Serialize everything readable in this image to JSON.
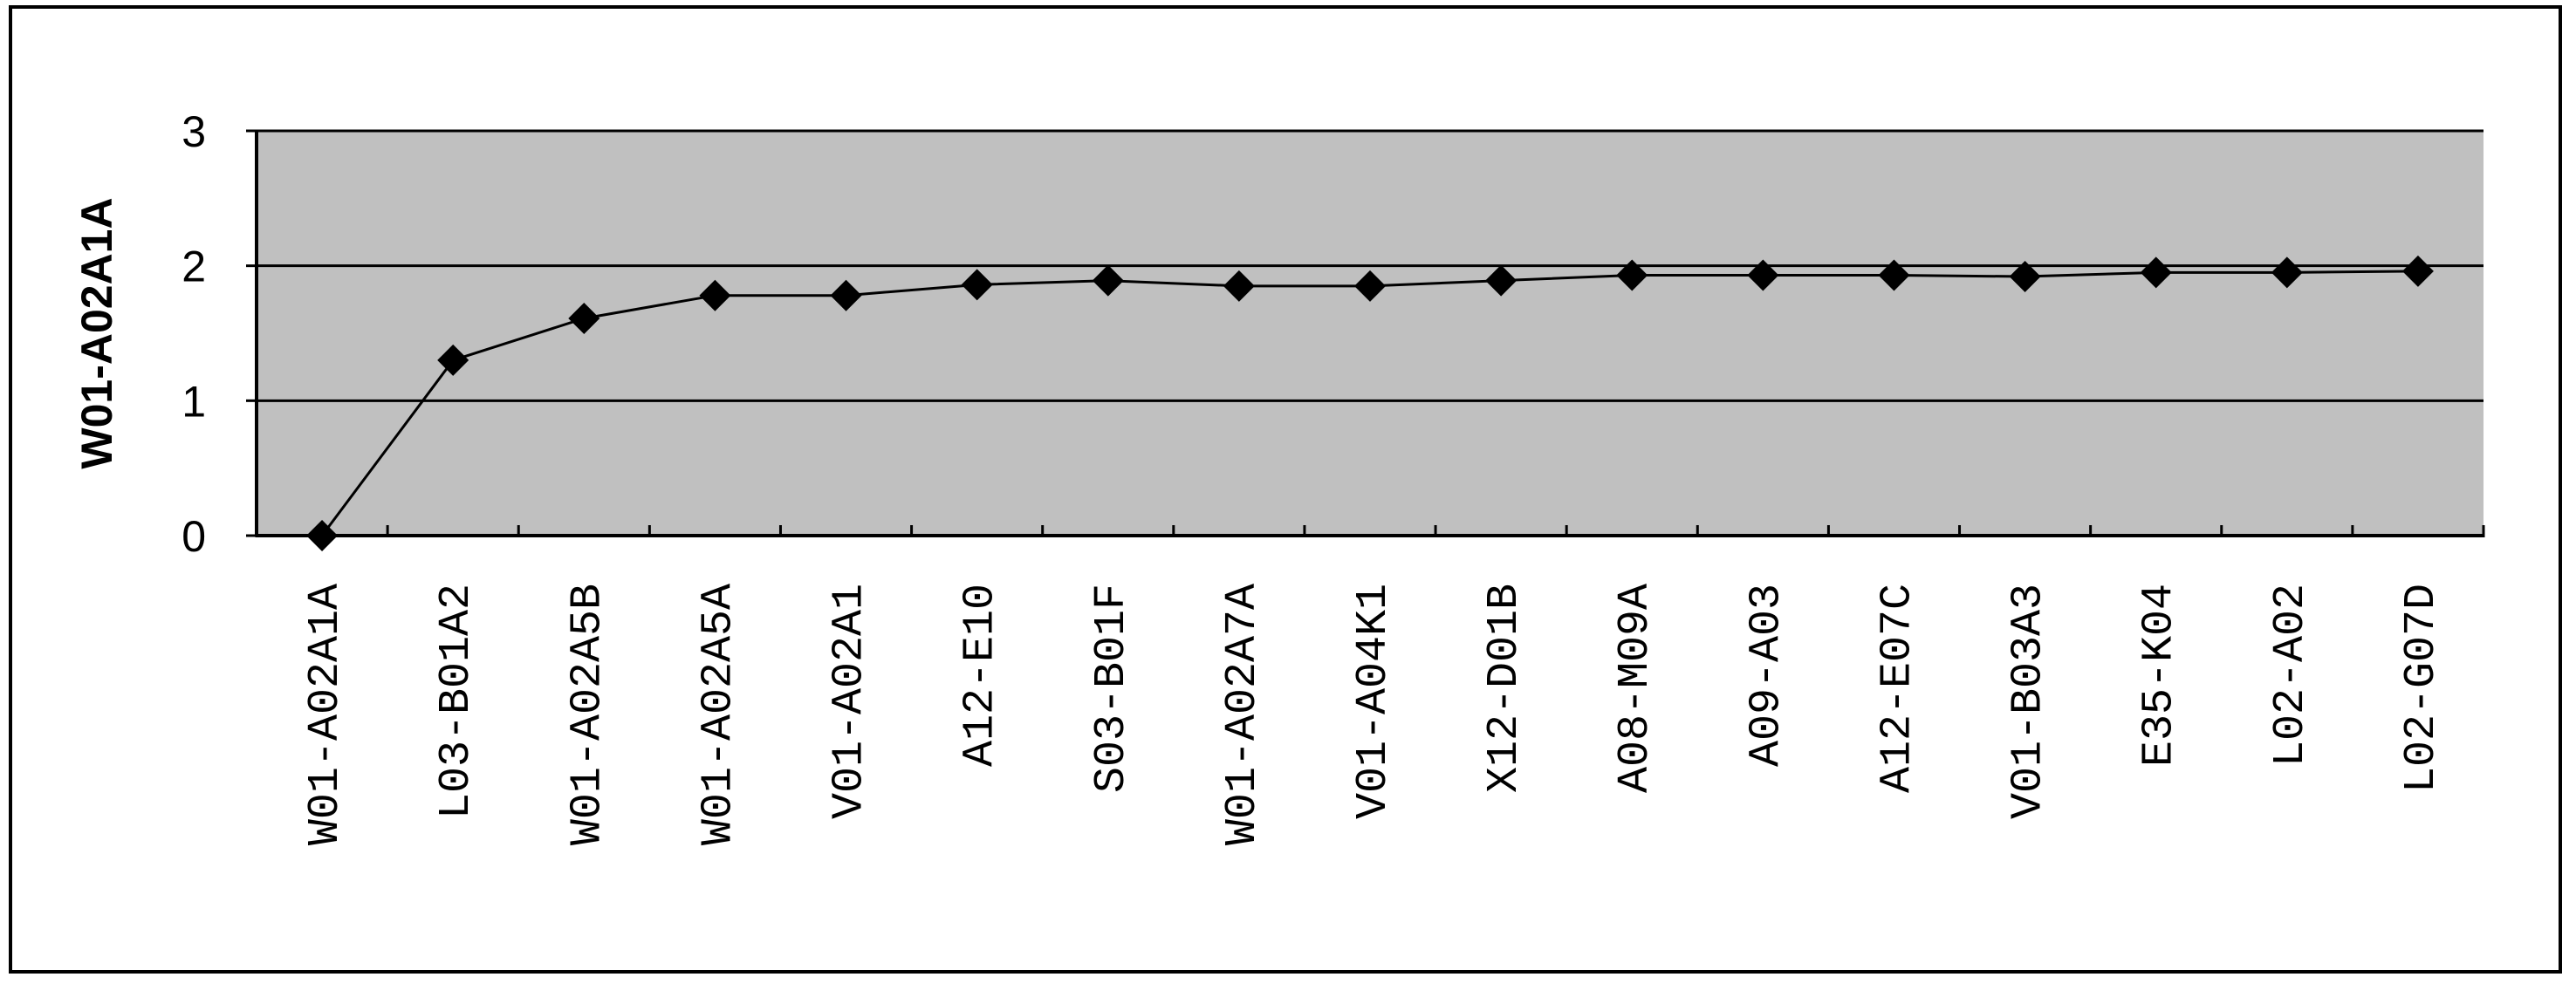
{
  "chart_data": {
    "type": "line",
    "ylabel": "W01-A02A1A",
    "xlabel": "",
    "ylim": [
      0,
      3
    ],
    "yticks": [
      "0",
      "1",
      "2",
      "3"
    ],
    "grid": true,
    "legend": "none",
    "colors": {
      "plot_bg": "#c0c0c0",
      "line": "#000000",
      "marker": "#000000",
      "grid": "#000000"
    },
    "categories": [
      "W01-A02A1A",
      "L03-B01A2",
      "W01-A02A5B",
      "W01-A02A5A",
      "V01-A02A1",
      "A12-E10",
      "S03-B01F",
      "W01-A02A7A",
      "V01-A04K1",
      "X12-D01B",
      "A08-M09A",
      "A09-A03",
      "A12-E07C",
      "V01-B03A3",
      "E35-K04",
      "L02-A02",
      "L02-G07D"
    ],
    "series": [
      {
        "values": [
          0,
          1.3,
          1.61,
          1.78,
          1.78,
          1.86,
          1.89,
          1.85,
          1.85,
          1.89,
          1.93,
          1.93,
          1.93,
          1.92,
          1.95,
          1.95,
          1.96
        ]
      }
    ]
  }
}
